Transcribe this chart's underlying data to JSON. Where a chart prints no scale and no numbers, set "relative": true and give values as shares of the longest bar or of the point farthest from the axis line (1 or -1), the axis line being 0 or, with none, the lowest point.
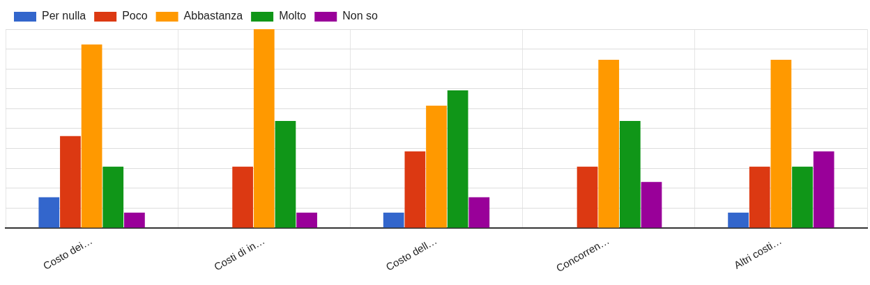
{
  "chart_data": {
    "type": "bar",
    "relative": true,
    "grid": true,
    "legend": "top left",
    "categories": [
      "Costo dei…",
      "Costi di in…",
      "Costo dell…",
      "Concorren…",
      "Altri costi…"
    ],
    "series": [
      {
        "name": "Per nulla",
        "color": "#3366cc",
        "values": [
          0.154,
          0,
          0.077,
          0,
          0.077
        ]
      },
      {
        "name": "Poco",
        "color": "#dc3912",
        "values": [
          0.462,
          0.308,
          0.385,
          0.308,
          0.308
        ]
      },
      {
        "name": "Abbastanza",
        "color": "#ff9900",
        "values": [
          0.923,
          1,
          0.615,
          0.846,
          0.846
        ]
      },
      {
        "name": "Molto",
        "color": "#109618",
        "values": [
          0.308,
          0.538,
          0.692,
          0.538,
          0.308
        ]
      },
      {
        "name": "Non so",
        "color": "#990099",
        "values": [
          0.077,
          0.077,
          0.154,
          0.231,
          0.385
        ]
      }
    ]
  }
}
